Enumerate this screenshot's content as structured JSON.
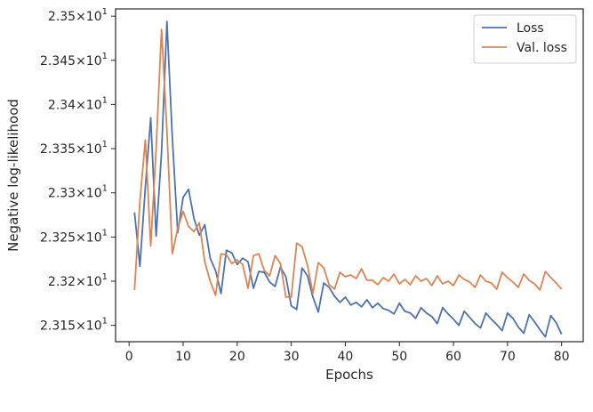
{
  "chart_data": {
    "type": "line",
    "xlabel": "Epochs",
    "ylabel": "Negative log-likelihood",
    "xlim": [
      -2.5,
      84.0
    ],
    "ylim": [
      23.1315,
      23.5082
    ],
    "xticks": [
      0,
      10,
      20,
      30,
      40,
      50,
      60,
      70,
      80
    ],
    "xtick_labels": [
      "0",
      "10",
      "20",
      "30",
      "40",
      "50",
      "60",
      "70",
      "80"
    ],
    "yticks": [
      23.15,
      23.2,
      23.25,
      23.3,
      23.35,
      23.4,
      23.45,
      23.5
    ],
    "ytick_labels": [
      {
        "mantissa": "2.315",
        "base": "10",
        "exp": "1"
      },
      {
        "mantissa": "2.32",
        "base": "10",
        "exp": "1"
      },
      {
        "mantissa": "2.325",
        "base": "10",
        "exp": "1"
      },
      {
        "mantissa": "2.33",
        "base": "10",
        "exp": "1"
      },
      {
        "mantissa": "2.335",
        "base": "10",
        "exp": "1"
      },
      {
        "mantissa": "2.34",
        "base": "10",
        "exp": "1"
      },
      {
        "mantissa": "2.345",
        "base": "10",
        "exp": "1"
      },
      {
        "mantissa": "2.35",
        "base": "10",
        "exp": "1"
      }
    ],
    "grid": false,
    "legend_position": "top-right",
    "x": [
      1,
      2,
      3,
      4,
      5,
      6,
      7,
      8,
      9,
      10,
      11,
      12,
      13,
      14,
      15,
      16,
      17,
      18,
      19,
      20,
      21,
      22,
      23,
      24,
      25,
      26,
      27,
      28,
      29,
      30,
      31,
      32,
      33,
      34,
      35,
      36,
      37,
      38,
      39,
      40,
      41,
      42,
      43,
      44,
      45,
      46,
      47,
      48,
      49,
      50,
      51,
      52,
      53,
      54,
      55,
      56,
      57,
      58,
      59,
      60,
      61,
      62,
      63,
      64,
      65,
      66,
      67,
      68,
      69,
      70,
      71,
      72,
      73,
      74,
      75,
      76,
      77,
      78,
      79,
      80
    ],
    "series": [
      {
        "name": "Loss",
        "color": "#4c72b0",
        "values": [
          23.278,
          23.217,
          23.306,
          23.385,
          23.251,
          23.346,
          23.494,
          23.362,
          23.255,
          23.295,
          23.304,
          23.271,
          23.252,
          23.264,
          23.226,
          23.212,
          23.186,
          23.235,
          23.232,
          23.219,
          23.226,
          23.222,
          23.192,
          23.211,
          23.21,
          23.199,
          23.194,
          23.216,
          23.205,
          23.172,
          23.168,
          23.215,
          23.206,
          23.182,
          23.165,
          23.198,
          23.193,
          23.183,
          23.176,
          23.182,
          23.173,
          23.176,
          23.171,
          23.179,
          23.17,
          23.175,
          23.169,
          23.167,
          23.163,
          23.175,
          23.166,
          23.164,
          23.158,
          23.17,
          23.164,
          23.16,
          23.152,
          23.17,
          23.163,
          23.157,
          23.15,
          23.166,
          23.159,
          23.152,
          23.147,
          23.164,
          23.157,
          23.151,
          23.144,
          23.164,
          23.158,
          23.148,
          23.141,
          23.162,
          23.154,
          23.145,
          23.137,
          23.161,
          23.153,
          23.14
        ]
      },
      {
        "name": "Val. loss",
        "color": "#dd8452",
        "values": [
          23.19,
          23.29,
          23.36,
          23.24,
          23.35,
          23.485,
          23.37,
          23.231,
          23.26,
          23.279,
          23.262,
          23.256,
          23.266,
          23.222,
          23.2,
          23.184,
          23.231,
          23.23,
          23.22,
          23.224,
          23.219,
          23.192,
          23.229,
          23.231,
          23.212,
          23.206,
          23.229,
          23.22,
          23.182,
          23.182,
          23.243,
          23.239,
          23.218,
          23.186,
          23.221,
          23.215,
          23.196,
          23.191,
          23.21,
          23.205,
          23.207,
          23.203,
          23.214,
          23.201,
          23.201,
          23.196,
          23.204,
          23.2,
          23.208,
          23.197,
          23.202,
          23.196,
          23.206,
          23.2,
          23.203,
          23.195,
          23.206,
          23.197,
          23.2,
          23.195,
          23.207,
          23.202,
          23.199,
          23.193,
          23.207,
          23.2,
          23.198,
          23.191,
          23.21,
          23.204,
          23.199,
          23.193,
          23.208,
          23.201,
          23.197,
          23.19,
          23.211,
          23.204,
          23.198,
          23.191
        ]
      }
    ]
  }
}
